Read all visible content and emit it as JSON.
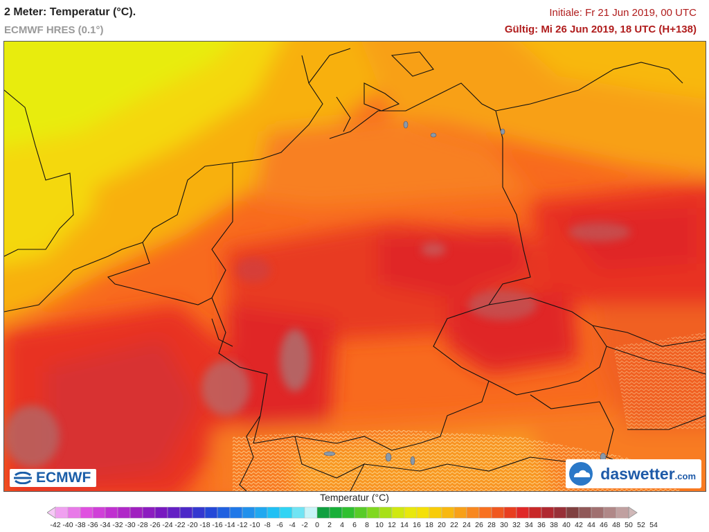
{
  "header": {
    "title": "2 Meter: Temperatur (°C).",
    "model": "ECMWF HRES (0.1°)",
    "initial": "Initiale: Fr 21 Jun 2019, 00 UTC",
    "valid": "Gültig: Mi 26 Jun 2019, 18 UTC (H+138)"
  },
  "logos": {
    "ecmwf": "ECMWF",
    "daswetter_name": "daswetter",
    "daswetter_tld": ".com"
  },
  "legend": {
    "title": "Temperatur (°C)",
    "ticks": [
      "-42",
      "-40",
      "-38",
      "-36",
      "-34",
      "-32",
      "-30",
      "-28",
      "-26",
      "-24",
      "-22",
      "-20",
      "-18",
      "-16",
      "-14",
      "-12",
      "-10",
      "-8",
      "-6",
      "-4",
      "-2",
      "0",
      "2",
      "4",
      "6",
      "8",
      "10",
      "12",
      "14",
      "16",
      "18",
      "20",
      "22",
      "24",
      "26",
      "28",
      "30",
      "32",
      "34",
      "36",
      "38",
      "40",
      "42",
      "44",
      "46",
      "48",
      "50",
      "52",
      "54"
    ],
    "colors": [
      "#f6c8f6",
      "#f0a0f0",
      "#e87ae8",
      "#e050e0",
      "#d040d8",
      "#c030d0",
      "#b028c8",
      "#a020c0",
      "#8c1cc0",
      "#7818c0",
      "#6420c4",
      "#4c28c8",
      "#3438d0",
      "#2448d8",
      "#2060e0",
      "#2078e8",
      "#2090ec",
      "#20a8f0",
      "#20c0f4",
      "#30d4f4",
      "#70e4f4",
      "#c8f4f8",
      "#10a040",
      "#18b038",
      "#30c030",
      "#58cc28",
      "#80d820",
      "#a8e018",
      "#d0e810",
      "#e8e80c",
      "#f4e008",
      "#f8cc08",
      "#f8b810",
      "#f8a018",
      "#f88820",
      "#f87020",
      "#f05820",
      "#e83e20",
      "#e02828",
      "#c82828",
      "#b02830",
      "#983038",
      "#804040",
      "#905858",
      "#a07070",
      "#b08888",
      "#c0a0a0",
      "#d0b8b8"
    ]
  },
  "map": {
    "region": "Central Europe",
    "field": "2 m temperature"
  }
}
